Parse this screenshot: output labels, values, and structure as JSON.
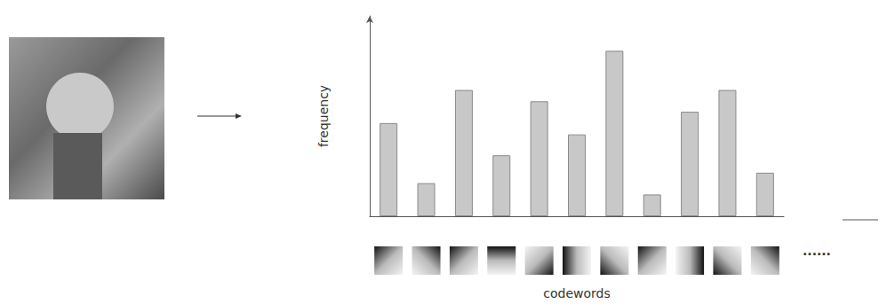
{
  "chart_data": {
    "type": "bar",
    "x_label": "codewords",
    "y_label": "frequency",
    "categories": [
      null,
      null,
      null,
      null,
      null,
      null,
      null,
      null,
      null,
      null,
      null
    ],
    "values": [
      107,
      38,
      145,
      70,
      132,
      94,
      190,
      25,
      120,
      145,
      50
    ],
    "color": "#c8c8c8",
    "ylim": [
      0,
      230
    ],
    "grid": false,
    "tick_labels": false,
    "annotations": [
      "......"
    ]
  }
}
